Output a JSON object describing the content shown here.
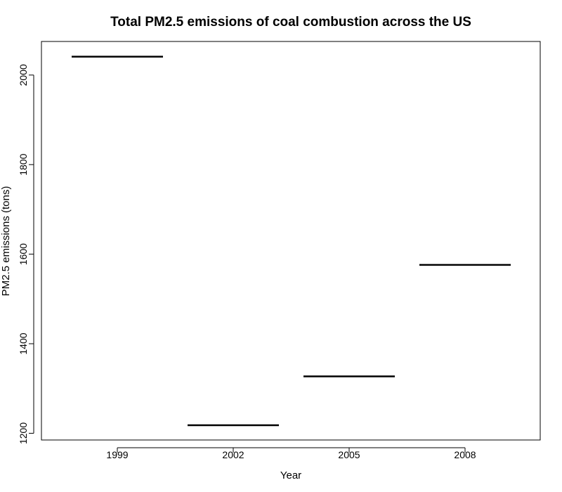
{
  "chart_data": {
    "type": "bar",
    "title": "Total PM2.5 emissions of coal combustion across the US",
    "xlabel": "Year",
    "ylabel": "PM2.5 emissions (tons)",
    "categories": [
      "1999",
      "2002",
      "2005",
      "2008"
    ],
    "values": [
      2041,
      1218,
      1327,
      1576
    ],
    "ylim": [
      1185,
      2075
    ],
    "yticks": [
      1200,
      1400,
      1600,
      1800,
      2000
    ],
    "grid": false,
    "legend": "none"
  }
}
